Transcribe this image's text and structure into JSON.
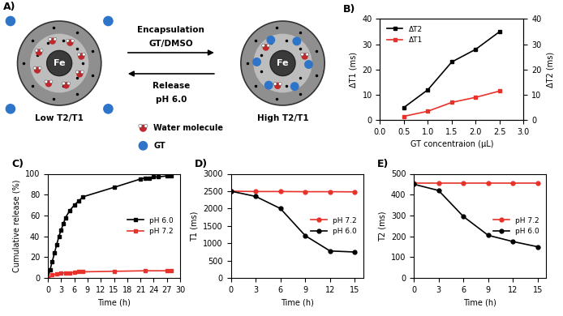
{
  "diagram": {
    "label": "A)",
    "left": {
      "core": "Fe",
      "caption": "Low T2/T1"
    },
    "right": {
      "core": "Fe",
      "caption": "High T2/T1"
    },
    "forward_arrow": [
      "Encapsulation",
      "GT/DMSO"
    ],
    "backward_arrow": [
      "Release",
      "pH 6.0"
    ],
    "legend": {
      "water": "Water molecule",
      "gt": "GT"
    }
  },
  "chart_data": [
    {
      "type": "line",
      "label": "B)",
      "xlabel": "GT concentraion (µL)",
      "ylabel": "ΔT1 (ms)",
      "y2label": "ΔT2 (ms)",
      "x": [
        0.5,
        1.0,
        1.5,
        2.0,
        2.5
      ],
      "series": [
        {
          "name": "ΔT2",
          "color": "#000000",
          "marker": "square",
          "line_style": "solid",
          "axis": "y2",
          "values": [
            5,
            12,
            23,
            28,
            35
          ]
        },
        {
          "name": "ΔT1",
          "color": "#e8312a",
          "marker": "square",
          "line_style": "solid",
          "values": [
            1.5,
            3.5,
            7,
            9,
            11.5
          ]
        }
      ],
      "xlim": [
        0,
        3.0
      ],
      "xticks": [
        {
          "value": 0,
          "label": "0.0"
        },
        0.5,
        {
          "value": 1,
          "label": "1.0"
        },
        1.5,
        {
          "value": 2,
          "label": "2.0"
        },
        2.5,
        {
          "value": 3,
          "label": "3.0"
        }
      ],
      "ylim": [
        0,
        40
      ],
      "yticks": [
        0,
        10,
        20,
        30,
        40
      ],
      "y2lim": [
        0,
        40
      ],
      "y2ticks": [
        0,
        10,
        20,
        30,
        40
      ],
      "legend": "upper left"
    },
    {
      "type": "line",
      "label": "C)",
      "xlabel": "Time (h)",
      "ylabel": "Cumulative release (%)",
      "series": [
        {
          "name": "pH 6.0",
          "color": "#000000",
          "marker": "square",
          "line_style": "solid",
          "x": [
            0,
            0.5,
            1,
            1.5,
            2,
            2.5,
            3,
            3.5,
            4,
            5,
            6,
            7,
            8,
            15,
            21,
            22,
            23,
            24,
            25,
            27,
            28
          ],
          "values": [
            0,
            8,
            16,
            24,
            32,
            40,
            46,
            52,
            58,
            65,
            70,
            74,
            78,
            87,
            95,
            96,
            96,
            97,
            97,
            98,
            98
          ]
        },
        {
          "name": "pH 7.2",
          "color": "#e8312a",
          "marker": "square",
          "line_style": "solid",
          "x": [
            0,
            1,
            2,
            3,
            4,
            5,
            6,
            7,
            8,
            15,
            22,
            27,
            28
          ],
          "values": [
            0,
            3,
            4,
            5,
            5,
            5,
            5.5,
            6,
            6,
            6.5,
            7,
            7,
            7
          ]
        }
      ],
      "xlim": [
        0,
        30
      ],
      "xticks": [
        0,
        3,
        6,
        9,
        12,
        15,
        18,
        21,
        24,
        27,
        30
      ],
      "ylim": [
        0,
        100
      ],
      "yticks": [
        0,
        20,
        40,
        60,
        80,
        100
      ],
      "legend": "center right"
    },
    {
      "type": "line",
      "label": "D)",
      "xlabel": "Time (h)",
      "ylabel": "T1 (ms)",
      "x": [
        0,
        3,
        6,
        9,
        12,
        15
      ],
      "series": [
        {
          "name": "pH 7.2",
          "color": "#e8312a",
          "marker": "circle",
          "line_style": "solid",
          "values": [
            2500,
            2490,
            2490,
            2485,
            2485,
            2480
          ]
        },
        {
          "name": "pH 6.0",
          "color": "#000000",
          "marker": "circle",
          "line_style": "solid",
          "values": [
            2500,
            2350,
            2000,
            1220,
            780,
            750
          ]
        }
      ],
      "xlim": [
        0,
        16
      ],
      "xticks": [
        0,
        3,
        6,
        9,
        12,
        15
      ],
      "ylim": [
        0,
        3000
      ],
      "yticks": [
        0,
        500,
        1000,
        1500,
        2000,
        2500,
        3000
      ],
      "legend": "center right"
    },
    {
      "type": "line",
      "label": "E)",
      "xlabel": "Time (h)",
      "ylabel": "T2 (ms)",
      "x": [
        0,
        3,
        6,
        9,
        12,
        15
      ],
      "series": [
        {
          "name": "pH 7.2",
          "color": "#e8312a",
          "marker": "circle",
          "line_style": "solid",
          "values": [
            455,
            455,
            455,
            455,
            455,
            455
          ]
        },
        {
          "name": "pH 6.0",
          "color": "#000000",
          "marker": "circle",
          "line_style": "solid",
          "values": [
            450,
            420,
            295,
            205,
            175,
            150
          ]
        }
      ],
      "xlim": [
        0,
        16
      ],
      "xticks": [
        0,
        3,
        6,
        9,
        12,
        15
      ],
      "ylim": [
        0,
        500
      ],
      "yticks": [
        0,
        100,
        200,
        300,
        400,
        500
      ],
      "legend": "center right"
    }
  ]
}
